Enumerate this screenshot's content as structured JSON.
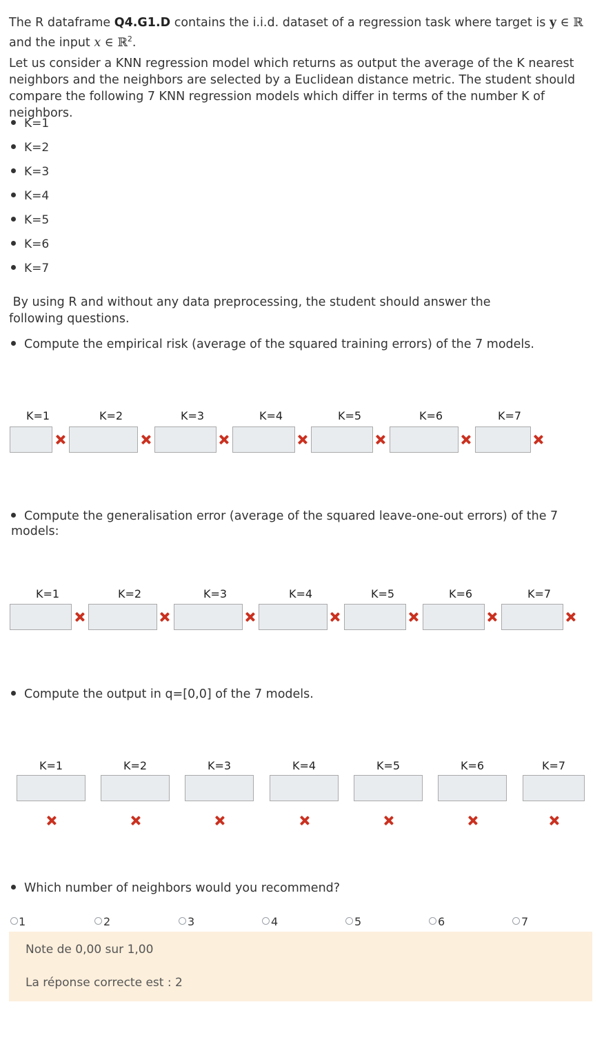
{
  "intro": {
    "line1_prefix": "The R dataframe ",
    "dataset_name": "Q4.G1.D",
    "line1_mid": " contains the i.i.d. dataset of a regression task where target is ",
    "target_symbol": "y",
    "in_symbol": " ∈ ",
    "real_symbol": "ℝ",
    "line2_prefix": "and the input ",
    "input_symbol": "x",
    "input_space": "ℝ",
    "input_exp": "2",
    "period": "."
  },
  "description": "Let us consider a KNN regression model which returns as output the average of the K nearest neighbors and the neighbors are selected by a Euclidean distance metric. The student should compare the following 7 KNN regression models which differ in terms of the number K of neighbors.",
  "models": [
    "K=1",
    "K=2",
    "K=3",
    "K=4",
    "K=5",
    "K=6",
    "K=7"
  ],
  "instructions": "By using R and without any data preprocessing,  the student should answer the following questions.",
  "questions": {
    "q1": "Compute the empirical risk (average of the squared training errors) of the 7 models.",
    "q2": "Compute the generalisation error (average of the squared leave-one-out errors) of the 7 models:",
    "q3": "Compute the output in q=[0,0] of the 7 models.",
    "q4": "Which number of neighbors would you recommend?"
  },
  "column_labels": [
    "K=1",
    "K=2",
    "K=3",
    "K=4",
    "K=5",
    "K=6",
    "K=7"
  ],
  "radio_options": [
    "1",
    "2",
    "3",
    "4",
    "5",
    "6",
    "7"
  ],
  "feedback": {
    "grade": "Note de 0,00 sur 1,00",
    "correct_answer": "La réponse correcte est : 2"
  },
  "colors": {
    "incorrect_mark": "#ca3120",
    "feedback_bg": "#fcefdc",
    "input_bg": "#e9ecef"
  },
  "icons": {
    "incorrect": "cross-icon"
  }
}
